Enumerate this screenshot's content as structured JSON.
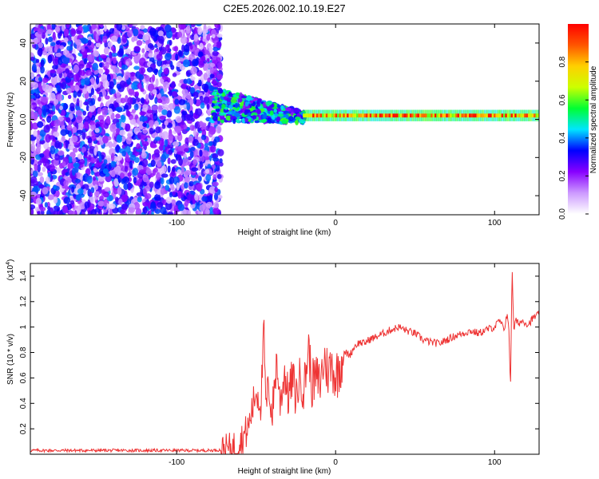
{
  "title": "C2E5.2026.002.10.19.E27",
  "chart_data": [
    {
      "type": "heatmap",
      "xlabel": "Height of straight line (km)",
      "ylabel": "Frequency (Hz)",
      "xlim": [
        -192,
        128
      ],
      "ylim": [
        -50,
        50
      ],
      "xticks": [
        -100,
        0,
        100
      ],
      "yticks": [
        -40,
        -20,
        0,
        20,
        40
      ],
      "grid": false,
      "colorbar": {
        "label": "Normalized spectral amplitude",
        "range": [
          0,
          1
        ],
        "ticks": [
          0.0,
          0.2,
          0.4,
          0.6,
          0.8
        ],
        "colormap": "rainbow-white-to-red",
        "colors": [
          "#ffffff",
          "#cc99ff",
          "#8800ff",
          "#0000ff",
          "#00e5ff",
          "#00ff33",
          "#ccff00",
          "#ffd000",
          "#ff5500",
          "#ff0000"
        ]
      },
      "regions": [
        {
          "x": [
            -192,
            -72
          ],
          "description_value": "broadband noise 0.1-0.4 across all frequencies"
        },
        {
          "x": [
            -78,
            -20
          ],
          "frequency_hz": [
            -10,
            15
          ],
          "amplitude": [
            0.2,
            0.6
          ]
        },
        {
          "x": [
            -20,
            128
          ],
          "frequency_hz": [
            1,
            3
          ],
          "amplitude": [
            0.6,
            1.0
          ]
        }
      ]
    },
    {
      "type": "line",
      "xlabel": "Height of straight line (km)",
      "ylabel": "SNR (10 * v/v)",
      "ylabel_multiplier": "(x10",
      "ylabel_multiplier_exp": "4",
      "xlim": [
        -192,
        128
      ],
      "ylim": [
        0,
        1.5
      ],
      "xticks": [
        -100,
        0,
        100
      ],
      "yticks": [
        0.2,
        0.4,
        0.6,
        0.8,
        1.0,
        1.2,
        1.4
      ],
      "grid": false,
      "series": [
        {
          "color": "#ee3333",
          "x": [
            -192,
            -150,
            -100,
            -80,
            -70,
            -65,
            -60,
            -55,
            -50,
            -47,
            -45,
            -44,
            -42,
            -40,
            -37,
            -35,
            -32,
            -30,
            -27,
            -25,
            -22,
            -20,
            -17,
            -15,
            -12,
            -10,
            -7,
            -5,
            -2,
            0,
            3,
            6,
            9,
            12,
            15,
            18,
            21,
            25,
            30,
            35,
            40,
            45,
            50,
            55,
            60,
            65,
            70,
            75,
            80,
            85,
            90,
            95,
            100,
            103,
            106,
            108,
            109,
            110,
            111,
            112,
            113,
            115,
            118,
            121,
            125,
            128
          ],
          "y": [
            0.03,
            0.03,
            0.03,
            0.03,
            0.035,
            0.05,
            0.1,
            0.2,
            0.5,
            0.4,
            0.98,
            0.35,
            0.55,
            0.3,
            0.75,
            0.4,
            0.65,
            0.45,
            0.6,
            0.45,
            0.62,
            0.5,
            0.85,
            0.55,
            0.6,
            0.55,
            0.75,
            0.65,
            0.7,
            0.6,
            0.72,
            0.8,
            0.78,
            0.85,
            0.88,
            0.87,
            0.9,
            0.92,
            0.95,
            0.98,
            1.0,
            0.97,
            0.95,
            0.9,
            0.88,
            0.87,
            0.9,
            0.93,
            0.95,
            0.97,
            0.95,
            0.98,
            1.0,
            1.05,
            0.98,
            1.12,
            0.95,
            0.53,
            1.5,
            0.95,
            1.05,
            1.03,
            1.05,
            1.02,
            1.08,
            1.1
          ]
        }
      ]
    }
  ]
}
